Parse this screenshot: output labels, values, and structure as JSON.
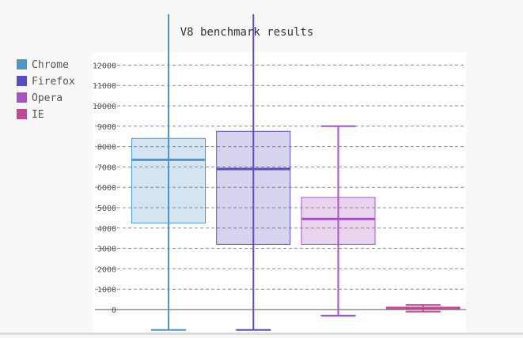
{
  "chart_data": {
    "type": "box",
    "title": "V8 benchmark results",
    "xlabel": "",
    "ylabel": "",
    "yticks": [
      0,
      1000,
      2000,
      3000,
      4000,
      5000,
      6000,
      7000,
      8000,
      9000,
      10000,
      11000,
      12000
    ],
    "grid": true,
    "legend_position": "left",
    "series": [
      {
        "name": "Chrome",
        "color": "#4f96c8",
        "min": -1000,
        "q1": 4250,
        "median": 7350,
        "q3": 8400,
        "max": 14500
      },
      {
        "name": "Firefox",
        "color": "#5a4fc0",
        "min": -1000,
        "q1": 3200,
        "median": 6900,
        "q3": 8750,
        "max": 14500
      },
      {
        "name": "Opera",
        "color": "#a852c4",
        "min": -300,
        "q1": 3200,
        "median": 4450,
        "q3": 5500,
        "max": 9000
      },
      {
        "name": "IE",
        "color": "#c04a96",
        "min": -100,
        "q1": 50,
        "median": 80,
        "q3": 110,
        "max": 230
      }
    ]
  }
}
